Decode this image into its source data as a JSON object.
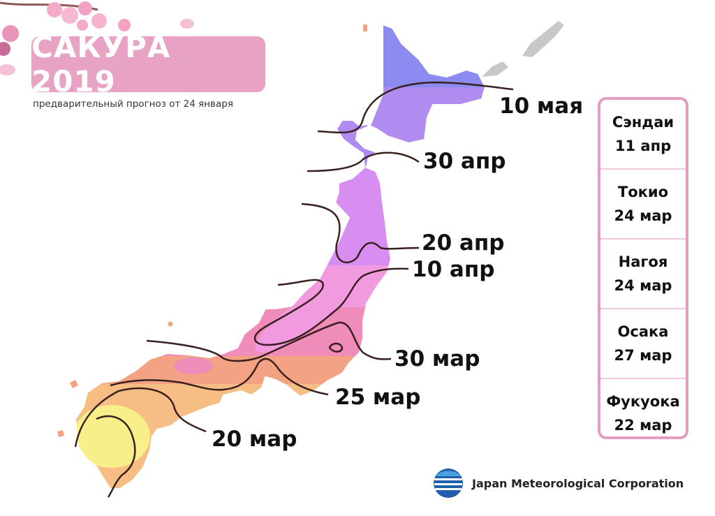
{
  "title": "САКУРА 2019",
  "subtitle": "предварительный прогноз от 24 января",
  "bloom_zones": [
    {
      "date": "10 мая",
      "color": "#8b8bf2"
    },
    {
      "date": "30 апр",
      "color": "#b08cf0"
    },
    {
      "date": "20 апр",
      "color": "#d88ef0"
    },
    {
      "date": "10 апр",
      "color": "#f29ae0"
    },
    {
      "date": "30 мар",
      "color": "#f08cba"
    },
    {
      "date": "25 мар",
      "color": "#f3a383"
    },
    {
      "date": "20 мар",
      "color": "#f6be84"
    },
    {
      "date": "",
      "color": "#f8ee8a"
    }
  ],
  "isolines": [
    {
      "label": "10 мая"
    },
    {
      "label": "30 апр"
    },
    {
      "label": "20 апр"
    },
    {
      "label": "10 апр"
    },
    {
      "label": "30 мар"
    },
    {
      "label": "25 мар"
    },
    {
      "label": "20 мар"
    }
  ],
  "cities": [
    {
      "name": "Сэндаи",
      "date": "11 апр"
    },
    {
      "name": "Токио",
      "date": "24 мар"
    },
    {
      "name": "Нагоя",
      "date": "24 мар"
    },
    {
      "name": "Осака",
      "date": "27 мар"
    },
    {
      "name": "Фукуока",
      "date": "22 мар"
    }
  ],
  "organization": "Japan Meteorological Corporation",
  "colors": {
    "accent": "#e8a2c3",
    "isoline": "#3a1f1f",
    "box_border": "#e59cc1"
  }
}
